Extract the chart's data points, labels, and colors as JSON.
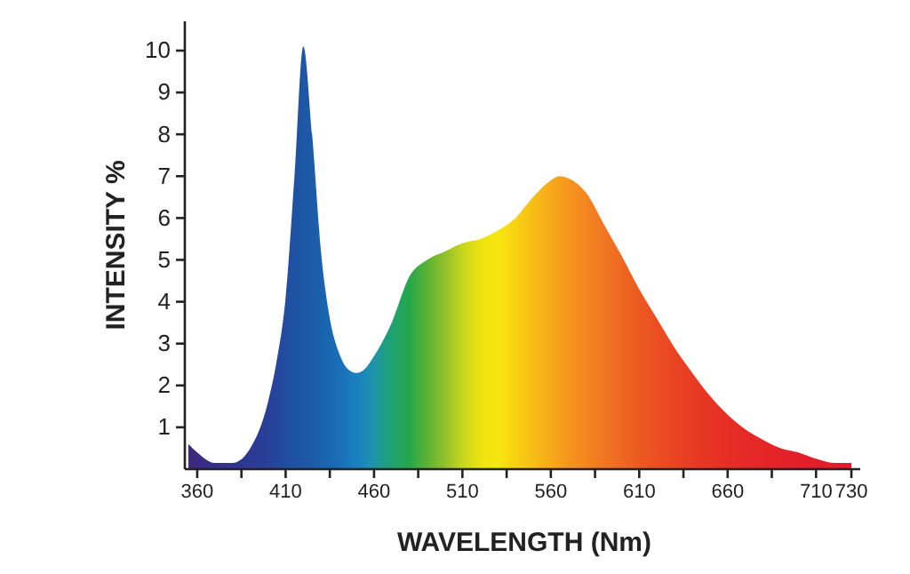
{
  "chart_data": {
    "type": "area",
    "xlabel": "WAVELENGTH (Nm)",
    "ylabel": "INTENSITY %",
    "x": [
      355,
      360,
      370,
      380,
      390,
      400,
      405,
      410,
      415,
      420,
      425,
      430,
      435,
      440,
      445,
      450,
      455,
      460,
      470,
      480,
      490,
      500,
      510,
      520,
      530,
      540,
      550,
      560,
      565,
      570,
      580,
      590,
      600,
      610,
      620,
      630,
      640,
      650,
      660,
      670,
      680,
      690,
      700,
      710,
      720,
      730
    ],
    "series": [
      {
        "values": [
          0.6,
          0.4,
          0.15,
          0.15,
          0.5,
          1.6,
          2.6,
          4.1,
          7,
          10.1,
          8,
          5.2,
          3.6,
          2.8,
          2.4,
          2.3,
          2.4,
          2.7,
          3.5,
          4.6,
          5.0,
          5.2,
          5.4,
          5.5,
          5.7,
          6.0,
          6.5,
          6.9,
          7.0,
          6.95,
          6.6,
          5.85,
          5.1,
          4.3,
          3.6,
          2.9,
          2.3,
          1.75,
          1.3,
          0.95,
          0.7,
          0.5,
          0.4,
          0.25,
          0.15,
          0.15
        ],
        "colors": [
          "#3b2a78",
          "#3a2c80",
          "#352f88",
          "#30348e",
          "#2c3a94",
          "#283f98",
          "#24469c",
          "#214d9f",
          "#1e52a2",
          "#1d56a4",
          "#1c5ba8",
          "#1b61ad",
          "#1a68b2",
          "#1a6eb8",
          "#1a76bc",
          "#1b80bf",
          "#1c8ab8",
          "#1e95a8",
          "#1ea270",
          "#25a84a",
          "#5cb234",
          "#90c12a",
          "#c6d61f",
          "#ecE312",
          "#f7e60f",
          "#f8d212",
          "#f8bd16",
          "#f8aa1a",
          "#f7a01c",
          "#f6961e",
          "#f48620",
          "#f17622",
          "#ef6822",
          "#ed5a22",
          "#eb4e22",
          "#e94422",
          "#e83b23",
          "#e73424",
          "#e62e25",
          "#e52a26",
          "#e42627",
          "#e32328",
          "#e22029",
          "#e21e2a",
          "#e11d2b",
          "#e11c2c"
        ]
      }
    ],
    "xlim": [
      353,
      735
    ],
    "ylim": [
      0,
      10.7
    ],
    "xticks": [
      360,
      {
        "value": 385,
        "label": null
      },
      410,
      {
        "value": 435,
        "label": null
      },
      460,
      {
        "value": 485,
        "label": null
      },
      510,
      {
        "value": 535,
        "label": null
      },
      560,
      {
        "value": 585,
        "label": null
      },
      610,
      {
        "value": 635,
        "label": null
      },
      660,
      {
        "value": 685,
        "label": null
      },
      710,
      730
    ],
    "yticks": [
      1,
      2,
      3,
      4,
      5,
      6,
      7,
      8,
      9,
      10
    ],
    "grid": false
  }
}
